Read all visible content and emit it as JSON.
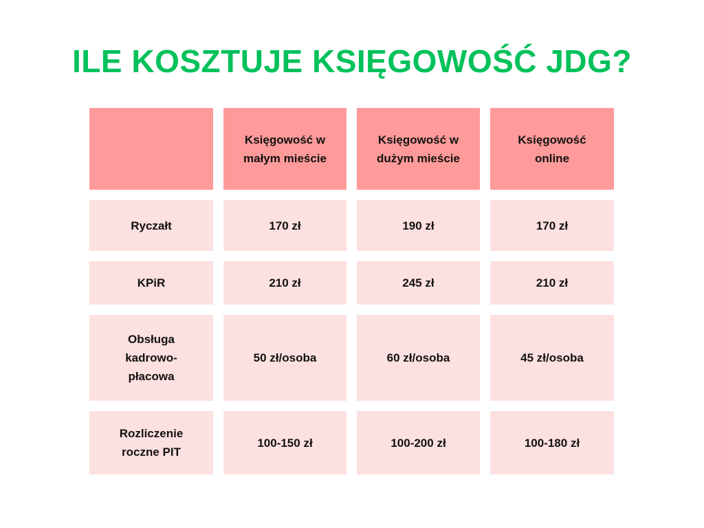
{
  "header": {
    "title": "ILE KOSZTUJE KSIĘGOWOŚĆ JDG?"
  },
  "table": {
    "columns": [
      "Księgowość w małym mieście",
      "Księgowość w dużym mieście",
      "Księgowość online"
    ],
    "rows": [
      [
        "Ryczałt",
        "170 zł",
        "190 zł",
        "170 zł"
      ],
      [
        "KPiR",
        "210 zł",
        "245 zł",
        "210 zł"
      ],
      [
        "Obsługa kadrowo-płacowa",
        "50 zł/osoba",
        "60 zł/osoba",
        "45 zł/osoba"
      ],
      [
        "Rozliczenie roczne PIT",
        "100-150 zł",
        "100-200 zł",
        "100-180 zł"
      ]
    ]
  }
}
